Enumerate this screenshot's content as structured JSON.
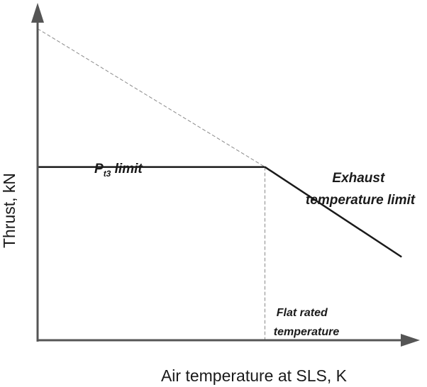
{
  "chart_data": {
    "type": "line",
    "title": "",
    "xlabel": "Air temperature at SLS, K",
    "ylabel": "Thrust, kN",
    "x_ticks": [],
    "y_ticks": [],
    "xlim": [
      0,
      1
    ],
    "ylim": [
      0,
      1
    ],
    "grid": false,
    "series": [
      {
        "name": "",
        "x": [
          0,
          0.587
        ],
        "y": [
          0.52,
          0.52
        ]
      },
      {
        "name": "",
        "x": [
          0.587,
          0.94
        ],
        "y": [
          0.52,
          0.25
        ]
      }
    ],
    "guides": [
      {
        "x": [
          0,
          0.587
        ],
        "y": [
          0.935,
          0.52
        ]
      },
      {
        "x": [
          0.587,
          0.587
        ],
        "y": [
          0.52,
          0
        ]
      }
    ],
    "annotations": [
      {
        "id": "pt3",
        "base": "P",
        "sub": "t3",
        "rest": " limit",
        "x": 0.17,
        "y": 0.54
      },
      {
        "id": "exhaust",
        "lines": [
          "Exhaust",
          "temperature limit"
        ],
        "x": 0.92,
        "y": 0.58
      },
      {
        "id": "flat",
        "lines": [
          "Flat rated",
          "temperature"
        ],
        "x": 0.74,
        "y": 0.07
      }
    ]
  }
}
